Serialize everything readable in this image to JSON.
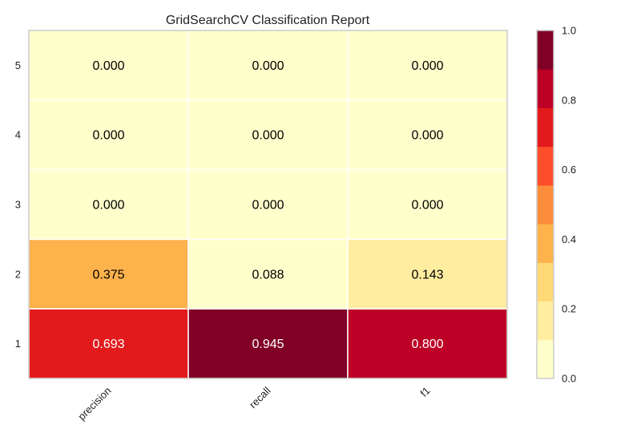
{
  "chart_data": {
    "type": "heatmap",
    "title": "GridSearchCV Classification Report",
    "xlabel": "",
    "ylabel": "",
    "x_categories": [
      "precision",
      "recall",
      "f1"
    ],
    "y_categories": [
      "1",
      "2",
      "3",
      "4",
      "5"
    ],
    "values": [
      [
        0.693,
        0.945,
        0.8
      ],
      [
        0.375,
        0.088,
        0.143
      ],
      [
        0.0,
        0.0,
        0.0
      ],
      [
        0.0,
        0.0,
        0.0
      ],
      [
        0.0,
        0.0,
        0.0
      ]
    ],
    "value_labels": [
      [
        "0.693",
        "0.945",
        "0.800"
      ],
      [
        "0.375",
        "0.088",
        "0.143"
      ],
      [
        "0.000",
        "0.000",
        "0.000"
      ],
      [
        "0.000",
        "0.000",
        "0.000"
      ],
      [
        "0.000",
        "0.000",
        "0.000"
      ]
    ],
    "colormap": "YlOrRd",
    "vlim": [
      0.0,
      1.0
    ],
    "colorbar": {
      "ticks": [
        "0.0",
        "0.2",
        "0.4",
        "0.6",
        "0.8",
        "1.0"
      ],
      "colors": [
        "#ffffcc",
        "#ffeda0",
        "#fed976",
        "#feb24c",
        "#fd8d3c",
        "#fc4e2a",
        "#e31a1c",
        "#bd0026",
        "#800026"
      ]
    },
    "grid": false
  }
}
